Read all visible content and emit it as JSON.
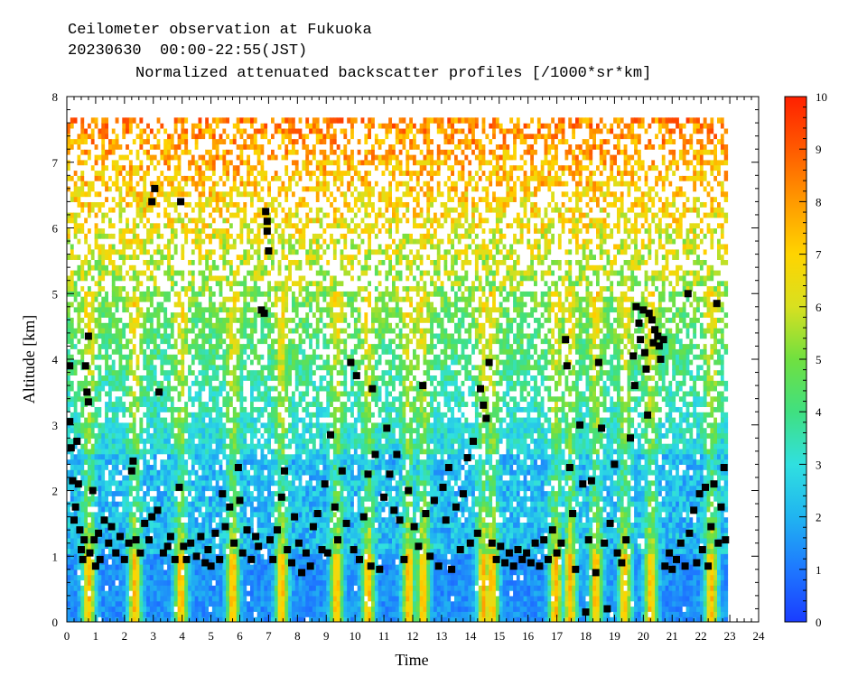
{
  "header": {
    "line1": "Ceilometer observation at Fukuoka",
    "line2": "20230630  00:00-22:55(JST)",
    "line3": "Normalized attenuated backscatter profiles [/1000*sr*km]"
  },
  "chart_data": {
    "type": "heatmap",
    "title": "Normalized attenuated backscatter profiles [/1000*sr*km]",
    "xlabel": "Time",
    "ylabel": "Altitude [km]",
    "xlim": [
      0,
      24
    ],
    "ylim": [
      0,
      8
    ],
    "x_ticks": [
      "0",
      "1",
      "2",
      "3",
      "4",
      "5",
      "6",
      "7",
      "8",
      "9",
      "10",
      "11",
      "12",
      "13",
      "14",
      "15",
      "16",
      "17",
      "18",
      "19",
      "20",
      "21",
      "22",
      "23",
      "24"
    ],
    "y_ticks": [
      "0",
      "1",
      "2",
      "3",
      "4",
      "5",
      "6",
      "7",
      "8"
    ],
    "data_time_range": [
      0,
      22.92
    ],
    "data_altitude_top": 7.67,
    "colorbar": {
      "ticks": [
        "0",
        "1",
        "2",
        "3",
        "4",
        "5",
        "6",
        "7",
        "8",
        "9",
        "10"
      ],
      "range": [
        0,
        10
      ],
      "colors": [
        "#1a3cff",
        "#1e78ff",
        "#20b4f0",
        "#30e0e0",
        "#40e080",
        "#70e040",
        "#d8e020",
        "#ffd400",
        "#ff9a00",
        "#ff5a00",
        "#ff2000"
      ]
    },
    "cloud_base_markers": [
      {
        "t": 0.1,
        "alt": 3.9
      },
      {
        "t": 0.1,
        "alt": 3.05
      },
      {
        "t": 0.15,
        "alt": 2.65
      },
      {
        "t": 0.2,
        "alt": 2.15
      },
      {
        "t": 0.25,
        "alt": 1.55
      },
      {
        "t": 0.3,
        "alt": 1.75
      },
      {
        "t": 0.35,
        "alt": 2.75
      },
      {
        "t": 0.4,
        "alt": 2.1
      },
      {
        "t": 0.45,
        "alt": 1.4
      },
      {
        "t": 0.5,
        "alt": 1.1
      },
      {
        "t": 0.55,
        "alt": 0.95
      },
      {
        "t": 0.6,
        "alt": 1.25
      },
      {
        "t": 0.65,
        "alt": 3.9
      },
      {
        "t": 0.7,
        "alt": 3.5
      },
      {
        "t": 0.75,
        "alt": 4.35
      },
      {
        "t": 0.75,
        "alt": 3.35
      },
      {
        "t": 0.8,
        "alt": 1.05
      },
      {
        "t": 0.9,
        "alt": 2.0
      },
      {
        "t": 0.95,
        "alt": 1.25
      },
      {
        "t": 1.0,
        "alt": 0.85
      },
      {
        "t": 1.1,
        "alt": 1.35
      },
      {
        "t": 1.15,
        "alt": 0.95
      },
      {
        "t": 1.3,
        "alt": 1.55
      },
      {
        "t": 1.45,
        "alt": 1.2
      },
      {
        "t": 1.55,
        "alt": 1.45
      },
      {
        "t": 1.7,
        "alt": 1.05
      },
      {
        "t": 1.85,
        "alt": 1.3
      },
      {
        "t": 2.0,
        "alt": 0.95
      },
      {
        "t": 2.15,
        "alt": 1.2
      },
      {
        "t": 2.25,
        "alt": 2.3
      },
      {
        "t": 2.3,
        "alt": 2.45
      },
      {
        "t": 2.4,
        "alt": 1.25
      },
      {
        "t": 2.55,
        "alt": 1.05
      },
      {
        "t": 2.7,
        "alt": 1.5
      },
      {
        "t": 2.85,
        "alt": 1.25
      },
      {
        "t": 2.95,
        "alt": 1.6
      },
      {
        "t": 2.95,
        "alt": 6.4
      },
      {
        "t": 3.05,
        "alt": 6.6
      },
      {
        "t": 3.15,
        "alt": 1.7
      },
      {
        "t": 3.2,
        "alt": 3.5
      },
      {
        "t": 3.35,
        "alt": 1.05
      },
      {
        "t": 3.5,
        "alt": 1.15
      },
      {
        "t": 3.6,
        "alt": 1.3
      },
      {
        "t": 3.75,
        "alt": 0.95
      },
      {
        "t": 3.9,
        "alt": 2.05
      },
      {
        "t": 3.95,
        "alt": 6.4
      },
      {
        "t": 4.05,
        "alt": 1.15
      },
      {
        "t": 4.15,
        "alt": 0.95
      },
      {
        "t": 4.3,
        "alt": 1.2
      },
      {
        "t": 4.5,
        "alt": 1.0
      },
      {
        "t": 4.65,
        "alt": 1.3
      },
      {
        "t": 4.8,
        "alt": 0.9
      },
      {
        "t": 4.9,
        "alt": 1.1
      },
      {
        "t": 5.0,
        "alt": 0.85
      },
      {
        "t": 5.15,
        "alt": 1.35
      },
      {
        "t": 5.3,
        "alt": 0.95
      },
      {
        "t": 5.4,
        "alt": 1.95
      },
      {
        "t": 5.5,
        "alt": 1.45
      },
      {
        "t": 5.65,
        "alt": 1.75
      },
      {
        "t": 5.8,
        "alt": 1.2
      },
      {
        "t": 5.95,
        "alt": 2.35
      },
      {
        "t": 6.0,
        "alt": 1.85
      },
      {
        "t": 6.1,
        "alt": 1.05
      },
      {
        "t": 6.25,
        "alt": 1.4
      },
      {
        "t": 6.4,
        "alt": 0.95
      },
      {
        "t": 6.55,
        "alt": 1.3
      },
      {
        "t": 6.65,
        "alt": 1.15
      },
      {
        "t": 6.75,
        "alt": 4.75
      },
      {
        "t": 6.85,
        "alt": 4.7
      },
      {
        "t": 6.9,
        "alt": 6.25
      },
      {
        "t": 6.95,
        "alt": 6.1
      },
      {
        "t": 6.95,
        "alt": 5.95
      },
      {
        "t": 7.0,
        "alt": 5.65
      },
      {
        "t": 7.05,
        "alt": 1.25
      },
      {
        "t": 7.15,
        "alt": 0.95
      },
      {
        "t": 7.3,
        "alt": 1.4
      },
      {
        "t": 7.45,
        "alt": 1.9
      },
      {
        "t": 7.55,
        "alt": 2.3
      },
      {
        "t": 7.65,
        "alt": 1.1
      },
      {
        "t": 7.8,
        "alt": 0.9
      },
      {
        "t": 7.9,
        "alt": 1.6
      },
      {
        "t": 8.05,
        "alt": 1.2
      },
      {
        "t": 8.15,
        "alt": 0.75
      },
      {
        "t": 8.3,
        "alt": 1.05
      },
      {
        "t": 8.45,
        "alt": 0.85
      },
      {
        "t": 8.55,
        "alt": 1.45
      },
      {
        "t": 8.7,
        "alt": 1.65
      },
      {
        "t": 8.85,
        "alt": 1.1
      },
      {
        "t": 8.95,
        "alt": 2.1
      },
      {
        "t": 9.05,
        "alt": 1.05
      },
      {
        "t": 9.15,
        "alt": 2.85
      },
      {
        "t": 9.3,
        "alt": 1.75
      },
      {
        "t": 9.4,
        "alt": 1.25
      },
      {
        "t": 9.55,
        "alt": 2.3
      },
      {
        "t": 9.7,
        "alt": 1.5
      },
      {
        "t": 9.85,
        "alt": 3.95
      },
      {
        "t": 9.95,
        "alt": 1.1
      },
      {
        "t": 10.05,
        "alt": 3.75
      },
      {
        "t": 10.15,
        "alt": 0.95
      },
      {
        "t": 10.3,
        "alt": 1.6
      },
      {
        "t": 10.45,
        "alt": 2.25
      },
      {
        "t": 10.55,
        "alt": 0.85
      },
      {
        "t": 10.6,
        "alt": 3.55
      },
      {
        "t": 10.7,
        "alt": 2.55
      },
      {
        "t": 10.85,
        "alt": 0.8
      },
      {
        "t": 11.0,
        "alt": 1.9
      },
      {
        "t": 11.1,
        "alt": 2.95
      },
      {
        "t": 11.2,
        "alt": 2.25
      },
      {
        "t": 11.35,
        "alt": 1.7
      },
      {
        "t": 11.45,
        "alt": 2.55
      },
      {
        "t": 11.55,
        "alt": 1.55
      },
      {
        "t": 11.7,
        "alt": 0.95
      },
      {
        "t": 11.85,
        "alt": 2.0
      },
      {
        "t": 12.05,
        "alt": 1.45
      },
      {
        "t": 12.2,
        "alt": 1.15
      },
      {
        "t": 12.35,
        "alt": 3.6
      },
      {
        "t": 12.45,
        "alt": 1.65
      },
      {
        "t": 12.6,
        "alt": 1.0
      },
      {
        "t": 12.75,
        "alt": 1.85
      },
      {
        "t": 12.9,
        "alt": 0.85
      },
      {
        "t": 13.05,
        "alt": 2.05
      },
      {
        "t": 13.15,
        "alt": 1.55
      },
      {
        "t": 13.25,
        "alt": 2.35
      },
      {
        "t": 13.35,
        "alt": 0.8
      },
      {
        "t": 13.5,
        "alt": 1.75
      },
      {
        "t": 13.65,
        "alt": 1.1
      },
      {
        "t": 13.75,
        "alt": 1.95
      },
      {
        "t": 13.9,
        "alt": 2.5
      },
      {
        "t": 14.0,
        "alt": 1.2
      },
      {
        "t": 14.1,
        "alt": 2.75
      },
      {
        "t": 14.25,
        "alt": 1.35
      },
      {
        "t": 14.35,
        "alt": 3.55
      },
      {
        "t": 14.45,
        "alt": 3.3
      },
      {
        "t": 14.55,
        "alt": 3.1
      },
      {
        "t": 14.65,
        "alt": 3.95
      },
      {
        "t": 14.75,
        "alt": 1.2
      },
      {
        "t": 14.9,
        "alt": 0.95
      },
      {
        "t": 15.05,
        "alt": 1.15
      },
      {
        "t": 15.2,
        "alt": 0.9
      },
      {
        "t": 15.35,
        "alt": 1.05
      },
      {
        "t": 15.5,
        "alt": 0.85
      },
      {
        "t": 15.65,
        "alt": 1.1
      },
      {
        "t": 15.8,
        "alt": 0.95
      },
      {
        "t": 15.95,
        "alt": 1.05
      },
      {
        "t": 16.1,
        "alt": 0.9
      },
      {
        "t": 16.25,
        "alt": 1.2
      },
      {
        "t": 16.4,
        "alt": 0.85
      },
      {
        "t": 16.55,
        "alt": 1.25
      },
      {
        "t": 16.7,
        "alt": 0.95
      },
      {
        "t": 16.85,
        "alt": 1.4
      },
      {
        "t": 17.0,
        "alt": 1.05
      },
      {
        "t": 17.15,
        "alt": 1.2
      },
      {
        "t": 17.3,
        "alt": 4.3
      },
      {
        "t": 17.35,
        "alt": 3.9
      },
      {
        "t": 17.45,
        "alt": 2.35
      },
      {
        "t": 17.55,
        "alt": 1.65
      },
      {
        "t": 17.65,
        "alt": 0.8
      },
      {
        "t": 17.8,
        "alt": 3.0
      },
      {
        "t": 17.9,
        "alt": 2.1
      },
      {
        "t": 18.0,
        "alt": 0.15
      },
      {
        "t": 18.1,
        "alt": 1.25
      },
      {
        "t": 18.2,
        "alt": 2.15
      },
      {
        "t": 18.35,
        "alt": 0.75
      },
      {
        "t": 18.45,
        "alt": 3.95
      },
      {
        "t": 18.55,
        "alt": 2.95
      },
      {
        "t": 18.65,
        "alt": 1.2
      },
      {
        "t": 18.75,
        "alt": 0.2
      },
      {
        "t": 18.85,
        "alt": 1.5
      },
      {
        "t": 19.0,
        "alt": 2.4
      },
      {
        "t": 19.1,
        "alt": 1.05
      },
      {
        "t": 19.25,
        "alt": 0.9
      },
      {
        "t": 19.4,
        "alt": 1.25
      },
      {
        "t": 19.55,
        "alt": 2.8
      },
      {
        "t": 19.65,
        "alt": 4.05
      },
      {
        "t": 19.7,
        "alt": 3.6
      },
      {
        "t": 19.75,
        "alt": 4.8
      },
      {
        "t": 19.85,
        "alt": 4.55
      },
      {
        "t": 19.9,
        "alt": 4.3
      },
      {
        "t": 20.0,
        "alt": 4.75
      },
      {
        "t": 20.05,
        "alt": 4.1
      },
      {
        "t": 20.1,
        "alt": 3.85
      },
      {
        "t": 20.15,
        "alt": 3.15
      },
      {
        "t": 20.2,
        "alt": 4.7
      },
      {
        "t": 20.3,
        "alt": 4.6
      },
      {
        "t": 20.35,
        "alt": 4.25
      },
      {
        "t": 20.4,
        "alt": 4.45
      },
      {
        "t": 20.5,
        "alt": 4.35
      },
      {
        "t": 20.55,
        "alt": 4.2
      },
      {
        "t": 20.6,
        "alt": 4.0
      },
      {
        "t": 20.7,
        "alt": 4.3
      },
      {
        "t": 20.75,
        "alt": 0.85
      },
      {
        "t": 20.9,
        "alt": 1.05
      },
      {
        "t": 21.0,
        "alt": 0.8
      },
      {
        "t": 21.15,
        "alt": 0.95
      },
      {
        "t": 21.3,
        "alt": 1.2
      },
      {
        "t": 21.45,
        "alt": 0.85
      },
      {
        "t": 21.55,
        "alt": 5.0
      },
      {
        "t": 21.6,
        "alt": 1.35
      },
      {
        "t": 21.75,
        "alt": 1.7
      },
      {
        "t": 21.85,
        "alt": 0.9
      },
      {
        "t": 21.95,
        "alt": 1.95
      },
      {
        "t": 22.05,
        "alt": 1.1
      },
      {
        "t": 22.15,
        "alt": 2.05
      },
      {
        "t": 22.25,
        "alt": 0.85
      },
      {
        "t": 22.35,
        "alt": 1.45
      },
      {
        "t": 22.45,
        "alt": 2.1
      },
      {
        "t": 22.55,
        "alt": 4.85
      },
      {
        "t": 22.6,
        "alt": 1.2
      },
      {
        "t": 22.7,
        "alt": 1.75
      },
      {
        "t": 22.8,
        "alt": 2.35
      },
      {
        "t": 22.85,
        "alt": 1.25
      }
    ]
  }
}
